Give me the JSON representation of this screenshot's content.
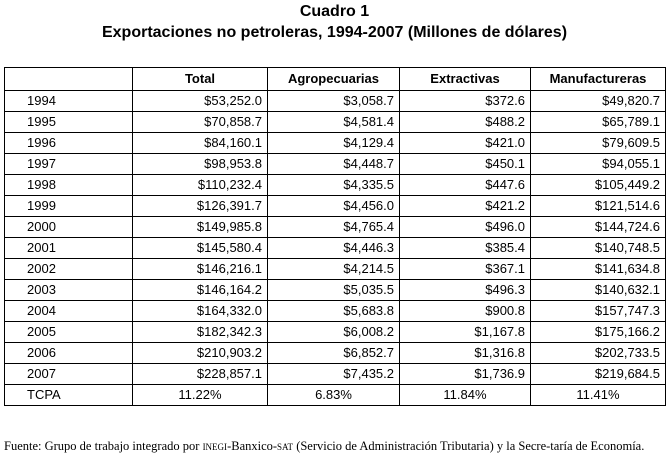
{
  "title": "Cuadro 1",
  "subtitle": "Exportaciones no petroleras, 1994-2007 (Millones de dólares)",
  "table": {
    "headers": [
      "",
      "Total",
      "Agropecuarias",
      "Extractivas",
      "Manufactureras"
    ],
    "rows": [
      [
        "1994",
        "$53,252.0",
        "$3,058.7",
        "$372.6",
        "$49,820.7"
      ],
      [
        "1995",
        "$70,858.7",
        "$4,581.4",
        "$488.2",
        "$65,789.1"
      ],
      [
        "1996",
        "$84,160.1",
        "$4,129.4",
        "$421.0",
        "$79,609.5"
      ],
      [
        "1997",
        "$98,953.8",
        "$4,448.7",
        "$450.1",
        "$94,055.1"
      ],
      [
        "1998",
        "$110,232.4",
        "$4,335.5",
        "$447.6",
        "$105,449.2"
      ],
      [
        "1999",
        "$126,391.7",
        "$4,456.0",
        "$421.2",
        "$121,514.6"
      ],
      [
        "2000",
        "$149,985.8",
        "$4,765.4",
        "$496.0",
        "$144,724.6"
      ],
      [
        "2001",
        "$145,580.4",
        "$4,446.3",
        "$385.4",
        "$140,748.5"
      ],
      [
        "2002",
        "$146,216.1",
        "$4,214.5",
        "$367.1",
        "$141,634.8"
      ],
      [
        "2003",
        "$146,164.2",
        "$5,035.5",
        "$496.3",
        "$140,632.1"
      ],
      [
        "2004",
        "$164,332.0",
        "$5,683.8",
        "$900.8",
        "$157,747.3"
      ],
      [
        "2005",
        "$182,342.3",
        "$6,008.2",
        "$1,167.8",
        "$175,166.2"
      ],
      [
        "2006",
        "$210,903.2",
        "$6,852.7",
        "$1,316.8",
        "$202,733.5"
      ],
      [
        "2007",
        "$228,857.1",
        "$7,435.2",
        "$1,736.9",
        "$219,684.5"
      ]
    ],
    "rate_row": [
      "TCPA",
      "11.22%",
      "6.83%",
      "11.84%",
      "11.41%"
    ]
  },
  "footnote": {
    "part1": "Fuente: Grupo de trabajo integrado por ",
    "org1": "inegi",
    "part2": "-Banxico-",
    "org2": "sat",
    "part3": " (Servicio de Administración Tributaria) y la Secre-tar­ía de Economía."
  }
}
